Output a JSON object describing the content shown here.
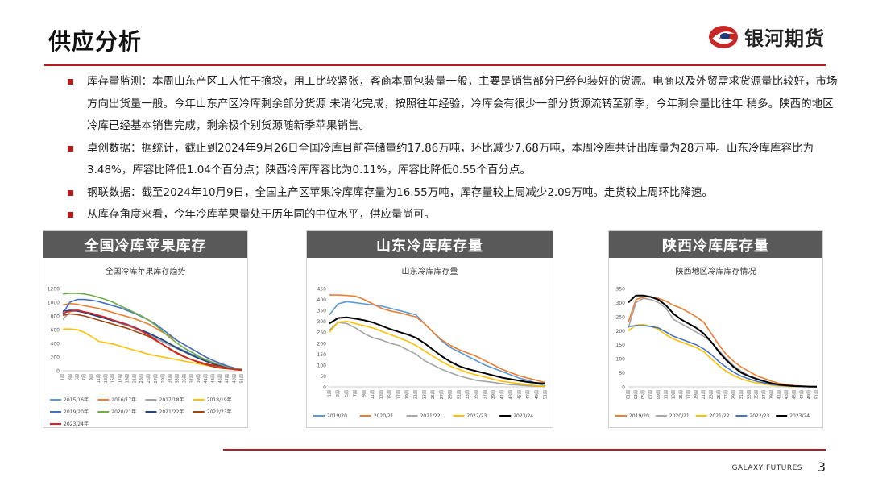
{
  "slide": {
    "title": "供应分析",
    "logo_text": "银河期货",
    "footer_brand": "GALAXY FUTURES",
    "page_number": "3",
    "accent": "#b71c1c"
  },
  "bullets": [
    "库存量监测：本周山东产区工人忙于摘袋，用工比较紧张，客商本周包装量一般，主要是销售部分已经包装好的货源。电商以及外贸需求货源量比较好，市场方向出货量一般。今年山东产区冷库剩余部分货源 未消化完成，按照往年经验，冷库会有很少一部分货源流转至新季，今年剩余量比往年 稍多。陕西的地区冷库已经基本销售完成，剩余极个别货源随新季苹果销售。",
    "卓创数据：据统计，截止到2024年9月26日全国冷库目前存储量约17.86万吨，环比减少7.68万吨，本周冷库共计出库量为28万吨。山东冷库库容比为3.48%，库容比降低1.04个百分点；陕西冷库库容比为0.11%，库容比降低0.55个百分点。",
    "钢联数据：截至2024年10月9日，全国主产区苹果冷库库存量为16.55万吨，库存量较上周减少2.09万吨。走货较上周环比降速。",
    "从库存角度来看，今年冷库苹果量处于历年同的中位水平，供应量尚可。"
  ],
  "chart_data": [
    {
      "type": "line",
      "panel_title": "全国冷库苹果库存",
      "title": "全国冷库苹果库存趋势",
      "ylim": [
        0,
        1200
      ],
      "yticks": [
        0,
        200,
        400,
        600,
        800,
        1000,
        1200
      ],
      "categories": [
        "1周",
        "3周",
        "5周",
        "7周",
        "9周",
        "11周",
        "13周",
        "15周",
        "17周",
        "19周",
        "21周",
        "23周",
        "25周",
        "27周",
        "29周",
        "31周",
        "33周",
        "35周",
        "37周",
        "39周",
        "41周",
        "43周",
        "45周",
        "47周",
        "49周",
        "51周"
      ],
      "legend_position": "bottom",
      "series": [
        {
          "name": "2015/16年",
          "color": "#5b9bd5",
          "values": [
            830,
            890,
            890,
            860,
            830,
            800,
            770,
            740,
            710,
            680,
            640,
            590,
            540,
            490,
            440,
            390,
            340,
            290,
            240,
            200,
            160,
            120,
            90,
            60,
            40,
            20
          ]
        },
        {
          "name": "2016/17年",
          "color": "#ed7d31",
          "values": [
            960,
            980,
            970,
            950,
            930,
            910,
            880,
            850,
            820,
            790,
            760,
            720,
            680,
            620,
            560,
            500,
            440,
            380,
            320,
            260,
            200,
            150,
            110,
            70,
            40,
            20
          ]
        },
        {
          "name": "2017/18年",
          "color": "#a5a5a5",
          "values": [
            750,
            860,
            880,
            860,
            840,
            810,
            770,
            730,
            690,
            660,
            620,
            570,
            520,
            470,
            420,
            370,
            320,
            270,
            220,
            180,
            140,
            100,
            70,
            50,
            30,
            20
          ]
        },
        {
          "name": "2018/19年",
          "color": "#ffc000",
          "values": [
            610,
            610,
            600,
            560,
            500,
            430,
            410,
            390,
            360,
            330,
            300,
            270,
            240,
            220,
            200,
            180,
            160,
            140,
            120,
            100,
            80,
            60,
            40,
            30,
            20,
            10
          ]
        },
        {
          "name": "2019/20年",
          "color": "#4472c4",
          "values": [
            840,
            1000,
            1040,
            1040,
            1030,
            1010,
            980,
            950,
            920,
            880,
            840,
            790,
            740,
            680,
            600,
            520,
            440,
            380,
            320,
            260,
            200,
            150,
            110,
            70,
            40,
            20
          ]
        },
        {
          "name": "2020/21年",
          "color": "#70ad47",
          "values": [
            1120,
            1130,
            1130,
            1120,
            1100,
            1070,
            1040,
            1000,
            950,
            900,
            850,
            800,
            740,
            660,
            570,
            480,
            400,
            330,
            270,
            210,
            160,
            120,
            80,
            50,
            30,
            20
          ]
        },
        {
          "name": "2021/22年",
          "color": "#264478",
          "values": [
            870,
            880,
            870,
            850,
            820,
            790,
            760,
            730,
            700,
            670,
            630,
            590,
            550,
            500,
            450,
            390,
            330,
            280,
            230,
            180,
            140,
            100,
            70,
            40,
            20,
            10
          ]
        },
        {
          "name": "2022/23年",
          "color": "#9e480e",
          "values": [
            810,
            830,
            820,
            800,
            770,
            740,
            710,
            680,
            650,
            620,
            580,
            540,
            500,
            440,
            380,
            320,
            260,
            210,
            160,
            120,
            90,
            60,
            40,
            30,
            20,
            10
          ]
        },
        {
          "name": "2023/24年",
          "color": "#e02020",
          "values": [
            840,
            870,
            880,
            860,
            840,
            810,
            780,
            740,
            710,
            670,
            630,
            580,
            520,
            450,
            380,
            310,
            250,
            200,
            160,
            130,
            100,
            80,
            60,
            40,
            20,
            10
          ]
        }
      ]
    },
    {
      "type": "line",
      "panel_title": "山东冷库库存量",
      "title": "山东冷库库存量",
      "ylim": [
        0,
        450
      ],
      "yticks": [
        0,
        50,
        100,
        150,
        200,
        250,
        300,
        350,
        400,
        450
      ],
      "categories": [
        "1周",
        "3周",
        "5周",
        "7周",
        "9周",
        "11周",
        "13周",
        "15周",
        "17周",
        "19周",
        "21周",
        "23周",
        "25周",
        "27周",
        "29周",
        "31周",
        "33周",
        "35周",
        "37周",
        "39周",
        "41周",
        "43周",
        "45周",
        "47周",
        "49周",
        "51周"
      ],
      "legend_position": "bottom",
      "series": [
        {
          "name": "2019/20",
          "color": "#5b9bd5",
          "values": [
            330,
            380,
            390,
            385,
            380,
            375,
            370,
            360,
            350,
            340,
            330,
            290,
            250,
            210,
            180,
            160,
            140,
            120,
            100,
            85,
            70,
            55,
            40,
            30,
            15,
            5
          ]
        },
        {
          "name": "2020/21",
          "color": "#ed7d31",
          "values": [
            420,
            420,
            418,
            415,
            400,
            380,
            360,
            348,
            340,
            330,
            320,
            290,
            250,
            215,
            190,
            170,
            155,
            140,
            120,
            100,
            80,
            65,
            50,
            40,
            30,
            20
          ]
        },
        {
          "name": "2021/22",
          "color": "#a5a5a5",
          "values": [
            260,
            295,
            290,
            270,
            245,
            225,
            215,
            200,
            190,
            170,
            150,
            120,
            100,
            80,
            65,
            50,
            40,
            30,
            25,
            20,
            15,
            10,
            8,
            5,
            3,
            2
          ]
        },
        {
          "name": "2022/23",
          "color": "#ffc000",
          "values": [
            250,
            295,
            300,
            290,
            280,
            270,
            255,
            240,
            225,
            210,
            190,
            165,
            140,
            115,
            95,
            80,
            65,
            55,
            45,
            35,
            25,
            20,
            15,
            10,
            5,
            3
          ]
        },
        {
          "name": "2023/24",
          "color": "#000000",
          "values": [
            290,
            315,
            318,
            312,
            305,
            295,
            280,
            265,
            252,
            240,
            225,
            200,
            170,
            140,
            115,
            95,
            82,
            72,
            62,
            52,
            42,
            35,
            28,
            22,
            18,
            15
          ]
        }
      ]
    },
    {
      "type": "line",
      "panel_title": "陕西冷库库存量",
      "title": "陕西地区冷库库存情况",
      "ylim": [
        0,
        350
      ],
      "yticks": [
        0,
        50,
        100,
        150,
        200,
        250,
        300,
        350
      ],
      "categories": [
        "01周",
        "03周",
        "05周",
        "07周",
        "09周",
        "11周",
        "13周",
        "15周",
        "17周",
        "19周",
        "21周",
        "23周",
        "25周",
        "27周",
        "29周",
        "31周",
        "33周",
        "35周",
        "37周",
        "39周",
        "41周",
        "43周",
        "45周",
        "47周",
        "49周",
        "51周"
      ],
      "legend_position": "bottom",
      "series": [
        {
          "name": "2019/20",
          "color": "#ed7d31",
          "values": [
            230,
            310,
            320,
            320,
            315,
            305,
            290,
            280,
            265,
            250,
            230,
            190,
            150,
            115,
            90,
            70,
            55,
            40,
            30,
            20,
            12,
            8,
            5,
            3,
            2,
            1
          ]
        },
        {
          "name": "2020/21",
          "color": "#a5a5a5",
          "values": [
            210,
            300,
            315,
            310,
            300,
            280,
            240,
            225,
            210,
            195,
            180,
            160,
            130,
            100,
            75,
            55,
            40,
            30,
            20,
            12,
            8,
            5,
            3,
            2,
            1,
            1
          ]
        },
        {
          "name": "2021/22",
          "color": "#ffc000",
          "values": [
            200,
            220,
            222,
            215,
            205,
            185,
            170,
            160,
            150,
            140,
            125,
            100,
            75,
            55,
            40,
            28,
            20,
            14,
            10,
            6,
            4,
            2,
            1,
            1,
            1,
            0
          ]
        },
        {
          "name": "2022/23",
          "color": "#4472c4",
          "values": [
            215,
            218,
            218,
            215,
            210,
            195,
            180,
            170,
            160,
            150,
            135,
            115,
            90,
            70,
            52,
            38,
            28,
            20,
            14,
            9,
            6,
            4,
            2,
            1,
            1,
            0
          ]
        },
        {
          "name": "2023/24",
          "color": "#000000",
          "values": [
            300,
            325,
            325,
            320,
            310,
            290,
            260,
            240,
            225,
            210,
            190,
            160,
            125,
            95,
            70,
            50,
            38,
            28,
            20,
            13,
            8,
            5,
            3,
            2,
            1,
            1
          ]
        }
      ]
    }
  ]
}
